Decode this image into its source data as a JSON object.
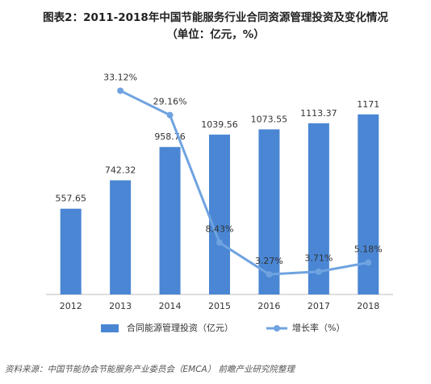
{
  "chart_data": {
    "type": "bar_line",
    "title": "图表2：2011-2018年中国节能服务行业合同资源管理投资及变化情况",
    "subtitle": "（单位：亿元，%）",
    "categories": [
      "2012",
      "2013",
      "2014",
      "2015",
      "2016",
      "2017",
      "2018"
    ],
    "series": [
      {
        "name": "合同能源管理投资（亿元）",
        "type": "bar",
        "color": "#4a86d4",
        "values": [
          557.65,
          742.32,
          958.76,
          1039.56,
          1073.55,
          1113.37,
          1171
        ]
      },
      {
        "name": "增长率（%）",
        "type": "line",
        "axis": "y2",
        "color": "#6fa3e0",
        "values": [
          null,
          33.12,
          29.16,
          8.43,
          3.27,
          3.71,
          5.18
        ],
        "value_labels": [
          null,
          "33.12%",
          "29.16%",
          "8.43%",
          "3.27%",
          "3.71%",
          "5.18%"
        ]
      }
    ],
    "ylim": [
      0,
      1600
    ],
    "y2lim": [
      0,
      40
    ],
    "legend": "bottom",
    "source": "资料来源：中国节能协会节能服务产业委员会（EMCA） 前瞻产业研究院整理"
  }
}
